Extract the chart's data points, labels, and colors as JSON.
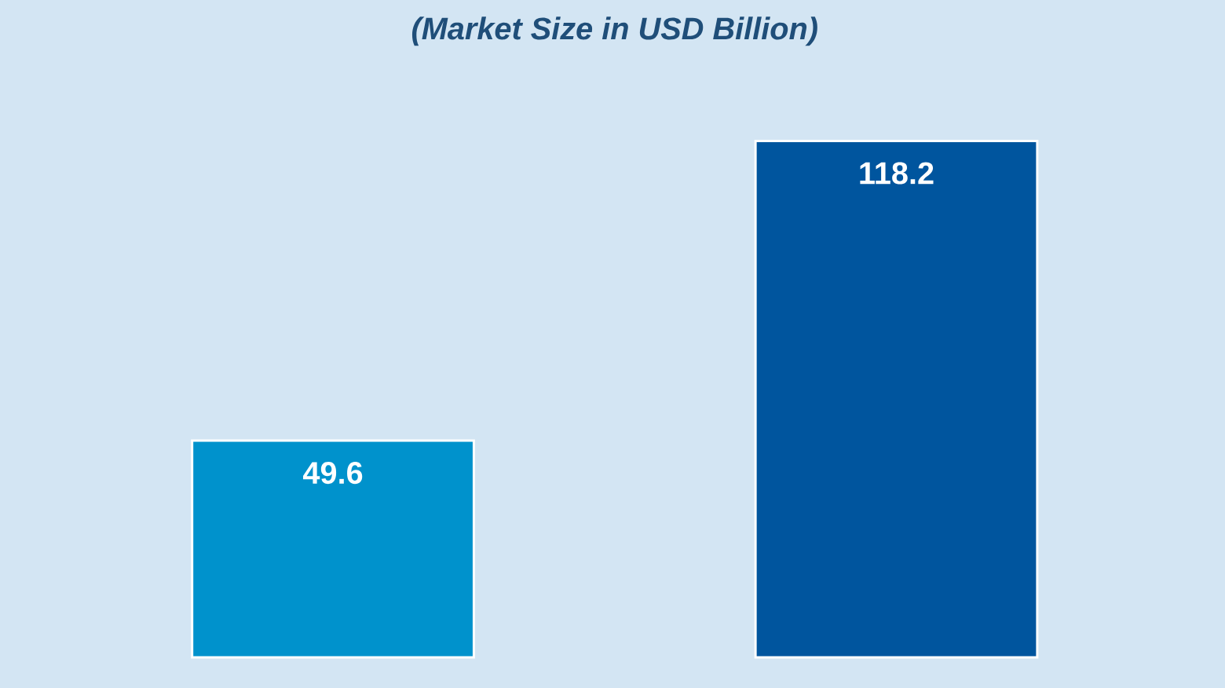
{
  "chart_data": {
    "type": "bar",
    "title": "(Market Size in USD Billion)",
    "categories": [
      null,
      null
    ],
    "values": [
      49.6,
      118.2
    ],
    "colors": [
      "#0092cc",
      "#00559e"
    ],
    "data_labels": true
  }
}
